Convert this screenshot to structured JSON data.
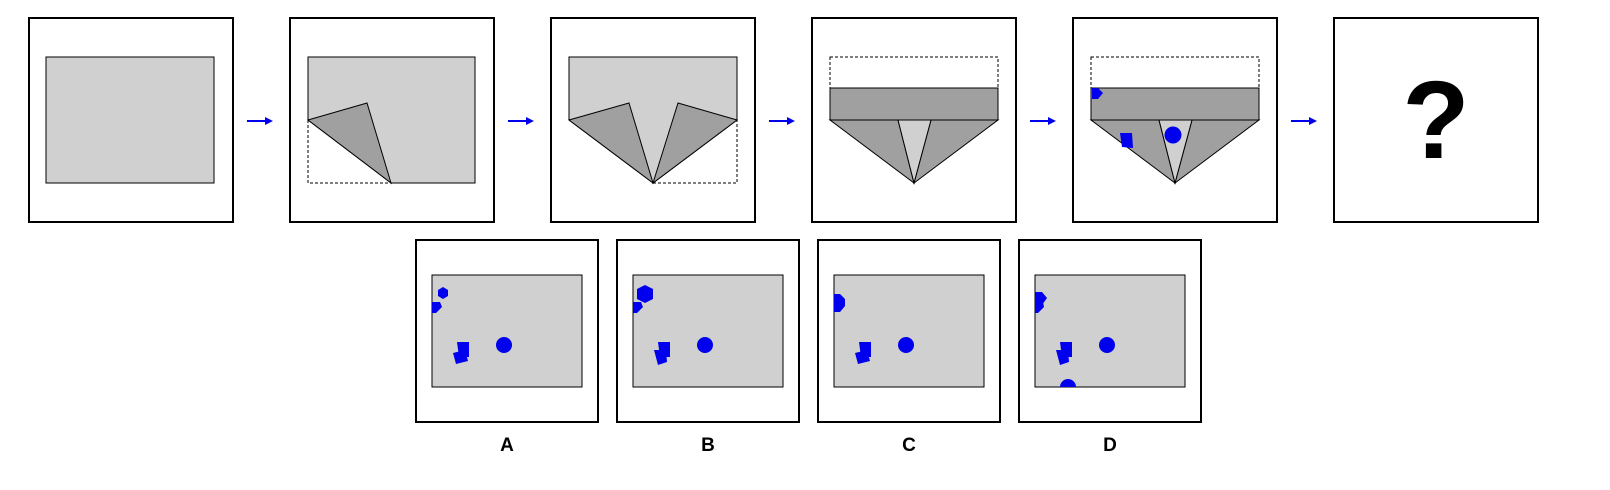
{
  "puzzle": {
    "question_mark": "?",
    "options": [
      {
        "label": "A"
      },
      {
        "label": "B"
      },
      {
        "label": "C"
      },
      {
        "label": "D"
      }
    ]
  },
  "colors": {
    "paper": "#d0d0d0",
    "fold": "#a0a0a0",
    "hole": "#0000ee",
    "arrow": "#0000ee",
    "frame": "#000000"
  }
}
